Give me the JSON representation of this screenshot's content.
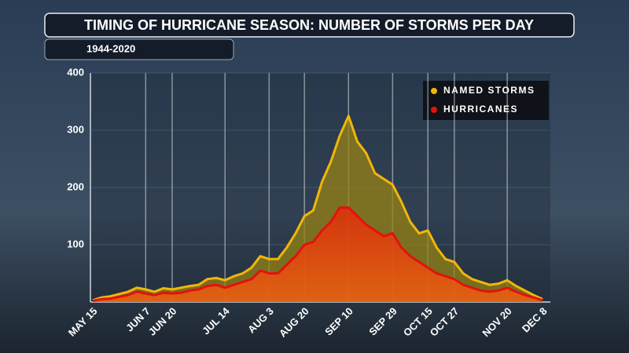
{
  "chart_data": {
    "type": "area",
    "title": "TIMING OF HURRICANE SEASON: NUMBER OF STORMS PER DAY",
    "subtitle": "1944-2020",
    "categories": [
      "MAY 15",
      null,
      null,
      null,
      null,
      null,
      "JUN 7",
      null,
      null,
      "JUN 20",
      null,
      null,
      null,
      null,
      null,
      "JUL 14",
      null,
      null,
      null,
      null,
      "AUG 3",
      null,
      null,
      null,
      "AUG 20",
      null,
      null,
      null,
      null,
      "SEP 10",
      null,
      null,
      null,
      null,
      "SEP 29",
      null,
      null,
      null,
      "OCT 15",
      null,
      null,
      "OCT 27",
      null,
      null,
      null,
      null,
      null,
      "NOV 20",
      null,
      null,
      null,
      "DEC 8"
    ],
    "series": [
      {
        "name": "NAMED STORMS",
        "color": "#f2b705",
        "values": [
          3,
          8,
          10,
          14,
          18,
          25,
          22,
          18,
          24,
          22,
          25,
          28,
          30,
          40,
          42,
          38,
          45,
          50,
          60,
          80,
          75,
          75,
          95,
          120,
          150,
          160,
          210,
          245,
          290,
          325,
          280,
          260,
          225,
          215,
          205,
          175,
          140,
          120,
          125,
          95,
          75,
          70,
          50,
          40,
          35,
          30,
          32,
          38,
          28,
          20,
          12,
          5
        ]
      },
      {
        "name": "HURRICANES",
        "color": "#e3120b",
        "values": [
          2,
          5,
          6,
          9,
          12,
          18,
          15,
          12,
          16,
          15,
          16,
          20,
          22,
          28,
          30,
          25,
          30,
          35,
          40,
          55,
          50,
          50,
          65,
          80,
          100,
          105,
          125,
          140,
          165,
          165,
          150,
          135,
          125,
          115,
          120,
          95,
          80,
          70,
          60,
          50,
          45,
          40,
          30,
          25,
          20,
          18,
          20,
          25,
          18,
          12,
          8,
          3
        ]
      }
    ],
    "ylim": [
      0,
      400
    ],
    "yticks": [
      100,
      200,
      300,
      400
    ],
    "grid": true,
    "legend": "top-right"
  }
}
